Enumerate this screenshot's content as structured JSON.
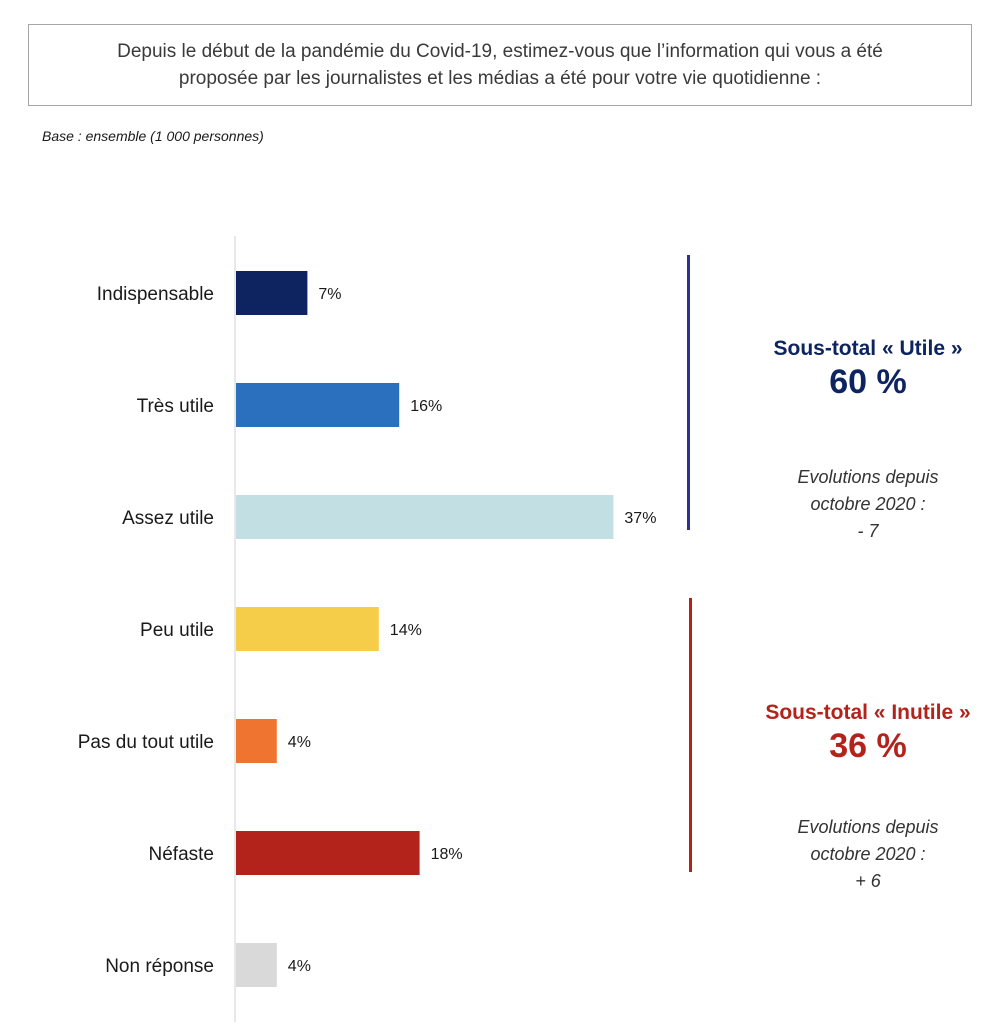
{
  "header": {
    "question_line1": "Depuis le début de la pandémie du Covid-19, estimez-vous que l’information qui vous a été",
    "question_line2": "proposée par les journalistes et les médias a été pour votre vie quotidienne :",
    "base": "Base : ensemble (1 000 personnes)"
  },
  "chart_data": {
    "type": "bar",
    "orientation": "horizontal",
    "categories": [
      "Indispensable",
      "Très utile",
      "Assez utile",
      "Peu utile",
      "Pas du tout utile",
      "Néfaste",
      "Non réponse"
    ],
    "values": [
      7,
      16,
      37,
      14,
      4,
      18,
      4
    ],
    "value_labels": [
      "7%",
      "16%",
      "37%",
      "14%",
      "4%",
      "18%",
      "4%"
    ],
    "colors": [
      "#0e2461",
      "#2b6fbf",
      "#c2e0e4",
      "#f6cd48",
      "#ee7430",
      "#b3231b",
      "#d9d9d9"
    ],
    "xlim": [
      0,
      40
    ]
  },
  "subtotals": [
    {
      "title": "Sous-total « Utile »",
      "value": "60 %",
      "color": "#0e2461",
      "bracket_color": "#2e3191",
      "evo_line1": "Evolutions depuis",
      "evo_line2": "octobre 2020 :",
      "evo_line3": "- 7"
    },
    {
      "title": "Sous-total « Inutile »",
      "value": "36 %",
      "color": "#b3231b",
      "bracket_color": "#b3231b",
      "evo_line1": "Evolutions depuis",
      "evo_line2": "octobre 2020 :",
      "evo_line3": "+ 6"
    }
  ]
}
